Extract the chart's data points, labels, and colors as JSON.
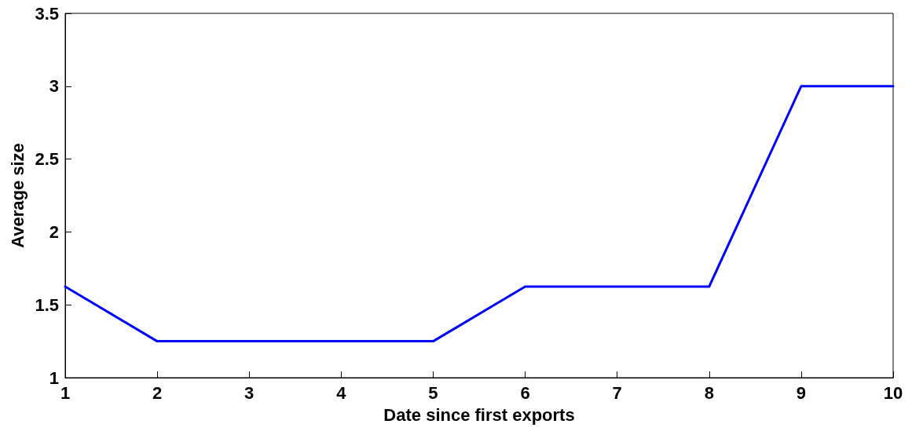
{
  "chart_data": {
    "type": "line",
    "xlabel": "Date since first exports",
    "ylabel": "Average size",
    "x": [
      1,
      2,
      3,
      4,
      5,
      6,
      7,
      8,
      9,
      10
    ],
    "series": [
      {
        "color": "#0000ff",
        "values": [
          1.625,
          1.25,
          1.25,
          1.25,
          1.25,
          1.625,
          1.625,
          1.625,
          3,
          3
        ]
      }
    ],
    "xlim": [
      1,
      10
    ],
    "xticks": [
      1,
      2,
      3,
      4,
      5,
      6,
      7,
      8,
      9,
      10
    ],
    "ylim": [
      1,
      3.5
    ],
    "yticks": [
      1,
      1.5,
      2,
      2.5,
      3,
      3.5
    ],
    "grid": false,
    "marker": "none",
    "line_style": "solid"
  }
}
